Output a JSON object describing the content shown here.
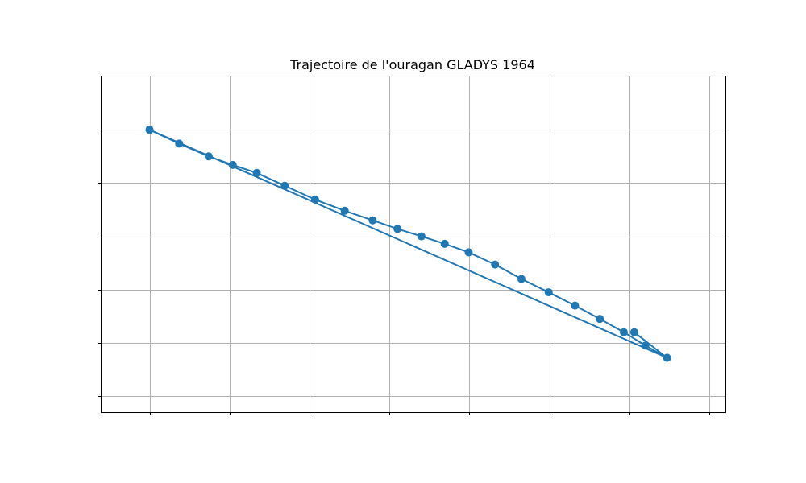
{
  "chart_data": {
    "type": "line",
    "title": "Trajectoire de l'ouragan GLADYS 1964",
    "xlabel": "",
    "ylabel": "",
    "grid": true,
    "xlim": [
      -0.6,
      7.2
    ],
    "ylim": [
      -0.3,
      6.0
    ],
    "x_gridlines": [
      0,
      1,
      2,
      3,
      4,
      5,
      6,
      7
    ],
    "y_gridlines": [
      0,
      1,
      2,
      3,
      4,
      5
    ],
    "series": [
      {
        "color": "#1f77b4",
        "marker": "circle",
        "x": [
          0.0,
          0.37,
          0.74,
          1.04,
          1.34,
          1.69,
          2.07,
          2.44,
          2.79,
          3.1,
          3.4,
          3.69,
          3.99,
          4.32,
          4.65,
          4.99,
          5.32,
          5.63,
          5.93,
          6.2,
          6.47,
          6.06,
          6.47,
          0.0
        ],
        "y": [
          5.0,
          4.74,
          4.5,
          4.34,
          4.19,
          3.95,
          3.69,
          3.48,
          3.3,
          3.14,
          3.0,
          2.86,
          2.7,
          2.47,
          2.2,
          1.95,
          1.7,
          1.45,
          1.2,
          0.95,
          0.72,
          1.2,
          0.72,
          5.0
        ]
      }
    ]
  }
}
